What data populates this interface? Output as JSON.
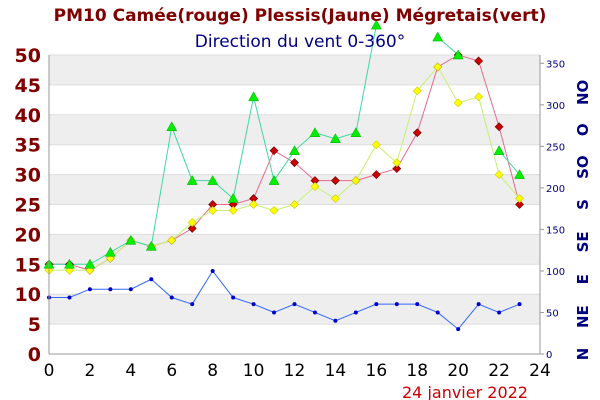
{
  "chart_data": {
    "type": "line",
    "title": "PM10 Camée(rouge) Plessis(Jaune) Mégretais(vert)",
    "subtitle": "Direction du vent 0-360°",
    "date": "24 janvier 2022",
    "x": [
      0,
      1,
      2,
      3,
      4,
      5,
      6,
      7,
      8,
      9,
      10,
      11,
      12,
      13,
      14,
      15,
      16,
      17,
      18,
      19,
      20,
      21,
      22,
      23
    ],
    "xticks": [
      "0",
      "2",
      "4",
      "6",
      "8",
      "10",
      "12",
      "14",
      "16",
      "18",
      "20",
      "22",
      "24"
    ],
    "xlim": [
      0,
      24
    ],
    "ylim": [
      0,
      50
    ],
    "yticks": [
      "0",
      "5",
      "10",
      "15",
      "20",
      "25",
      "30",
      "35",
      "40",
      "45",
      "50"
    ],
    "y2lim": [
      0,
      360
    ],
    "y2ticks": [
      "0",
      "50",
      "100",
      "150",
      "200",
      "250",
      "300",
      "350"
    ],
    "direction_labels": [
      "N",
      "NE",
      "E",
      "SE",
      "S",
      "SO",
      "O",
      "NO"
    ],
    "grid": true,
    "series": [
      {
        "name": "Camée",
        "color": "#cc0000",
        "line_color": "#e86a8a",
        "marker": "diamond",
        "values": [
          15,
          15,
          14,
          16,
          19,
          18,
          19,
          21,
          25,
          25,
          26,
          34,
          32,
          29,
          29,
          29,
          30,
          31,
          37,
          48,
          50,
          49,
          38,
          25
        ]
      },
      {
        "name": "Plessis",
        "color": "#ffff00",
        "line_color": "#c8f070",
        "marker": "diamond",
        "values": [
          14,
          14,
          14,
          16,
          19,
          18,
          19,
          22,
          24,
          24,
          25,
          24,
          25,
          28,
          26,
          29,
          35,
          32,
          44,
          48,
          42,
          43,
          30,
          26
        ]
      },
      {
        "name": "Mégretais",
        "color": "#00ee00",
        "line_color": "#40d8a0",
        "marker": "triangle",
        "values": [
          15,
          15,
          15,
          17,
          19,
          18,
          38,
          29,
          29,
          26,
          43,
          29,
          34,
          37,
          36,
          37,
          55,
          null,
          null,
          53,
          50,
          null,
          34,
          30
        ]
      },
      {
        "name": "Direction du vent",
        "color": "#0000cc",
        "line_color": "#3366ff",
        "marker": "dot",
        "axis": "y2",
        "values": [
          68,
          68,
          78,
          78,
          78,
          90,
          68,
          60,
          100,
          68,
          60,
          50,
          60,
          50,
          40,
          50,
          60,
          60,
          60,
          50,
          30,
          60,
          50,
          60
        ]
      }
    ]
  }
}
